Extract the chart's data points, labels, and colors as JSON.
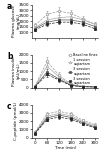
{
  "time": [
    0,
    60,
    120,
    180,
    240,
    300
  ],
  "panel_a": {
    "label": "a",
    "ylabel": "Plasma glucose\n(mg/dL)",
    "ylim": [
      500,
      3500
    ],
    "yticks": [
      1000,
      1500,
      2000,
      2500,
      3000,
      3500
    ],
    "series": {
      "baseline": {
        "values": [
          1600,
          2600,
          2900,
          2700,
          2200,
          1700
        ],
        "errors": [
          200,
          300,
          350,
          300,
          250,
          200
        ],
        "color": "#999999",
        "marker": "o",
        "linestyle": "--",
        "filled": false
      },
      "s1_asp": {
        "values": [
          1400,
          2100,
          2300,
          2400,
          2100,
          1700
        ],
        "errors": [
          150,
          250,
          280,
          260,
          220,
          180
        ],
        "color": "#aaaaaa",
        "marker": "^",
        "linestyle": "-",
        "filled": false
      },
      "s3_asp": {
        "values": [
          1300,
          1900,
          2100,
          2100,
          1900,
          1500
        ],
        "errors": [
          120,
          200,
          230,
          220,
          200,
          150
        ],
        "color": "#555555",
        "marker": "s",
        "linestyle": "-",
        "filled": true
      },
      "s3_asp2": {
        "values": [
          1200,
          1700,
          1900,
          1900,
          1700,
          1300
        ],
        "errors": [
          100,
          170,
          200,
          190,
          170,
          130
        ],
        "color": "#222222",
        "marker": "s",
        "linestyle": "--",
        "filled": true
      }
    }
  },
  "panel_b": {
    "label": "b",
    "ylabel": "Plasma insulin\n(pU/mL)",
    "ylim": [
      0,
      2000
    ],
    "yticks": [
      0,
      500,
      1000,
      1500,
      2000
    ],
    "series": {
      "baseline": {
        "values": [
          80,
          1600,
          750,
          200,
          80,
          50
        ],
        "errors": [
          30,
          250,
          180,
          60,
          25,
          15
        ],
        "color": "#999999",
        "marker": "o",
        "linestyle": "--",
        "filled": false
      },
      "s1_asp": {
        "values": [
          70,
          1300,
          650,
          170,
          70,
          45
        ],
        "errors": [
          25,
          200,
          140,
          50,
          20,
          12
        ],
        "color": "#aaaaaa",
        "marker": "^",
        "linestyle": "-",
        "filled": false
      },
      "s3_asp": {
        "values": [
          60,
          950,
          520,
          140,
          60,
          40
        ],
        "errors": [
          20,
          170,
          110,
          40,
          15,
          10
        ],
        "color": "#555555",
        "marker": "s",
        "linestyle": "-",
        "filled": true
      },
      "s3_asp2": {
        "values": [
          50,
          800,
          460,
          120,
          55,
          35
        ],
        "errors": [
          18,
          150,
          100,
          35,
          13,
          9
        ],
        "color": "#222222",
        "marker": "s",
        "linestyle": "--",
        "filled": true
      }
    }
  },
  "panel_c": {
    "label": "c",
    "ylabel": "C-peptide (pmol/L)",
    "ylim": [
      0,
      4000
    ],
    "yticks": [
      0,
      1000,
      2000,
      3000,
      4000
    ],
    "series": {
      "baseline": {
        "values": [
          700,
          2900,
          3200,
          2900,
          2100,
          1600
        ],
        "errors": [
          100,
          280,
          320,
          280,
          200,
          170
        ],
        "color": "#999999",
        "marker": "o",
        "linestyle": "--",
        "filled": false
      },
      "s1_asp": {
        "values": [
          600,
          2600,
          2950,
          2650,
          1950,
          1450
        ],
        "errors": [
          90,
          250,
          290,
          260,
          180,
          150
        ],
        "color": "#aaaaaa",
        "marker": "^",
        "linestyle": "-",
        "filled": false
      },
      "s3_asp": {
        "values": [
          550,
          2400,
          2750,
          2450,
          1800,
          1300
        ],
        "errors": [
          80,
          230,
          270,
          240,
          170,
          140
        ],
        "color": "#555555",
        "marker": "s",
        "linestyle": "-",
        "filled": true
      },
      "s3_asp2": {
        "values": [
          500,
          2200,
          2500,
          2250,
          1650,
          1200
        ],
        "errors": [
          70,
          210,
          250,
          220,
          160,
          130
        ],
        "color": "#222222",
        "marker": "s",
        "linestyle": "--",
        "filled": true
      }
    }
  },
  "legend_labels": [
    "Baseline fines",
    "1 session\naspartam",
    "3 session\naspartam",
    "3 session\naspartam"
  ],
  "xlabel": "Time (min)",
  "background_color": "#ffffff"
}
